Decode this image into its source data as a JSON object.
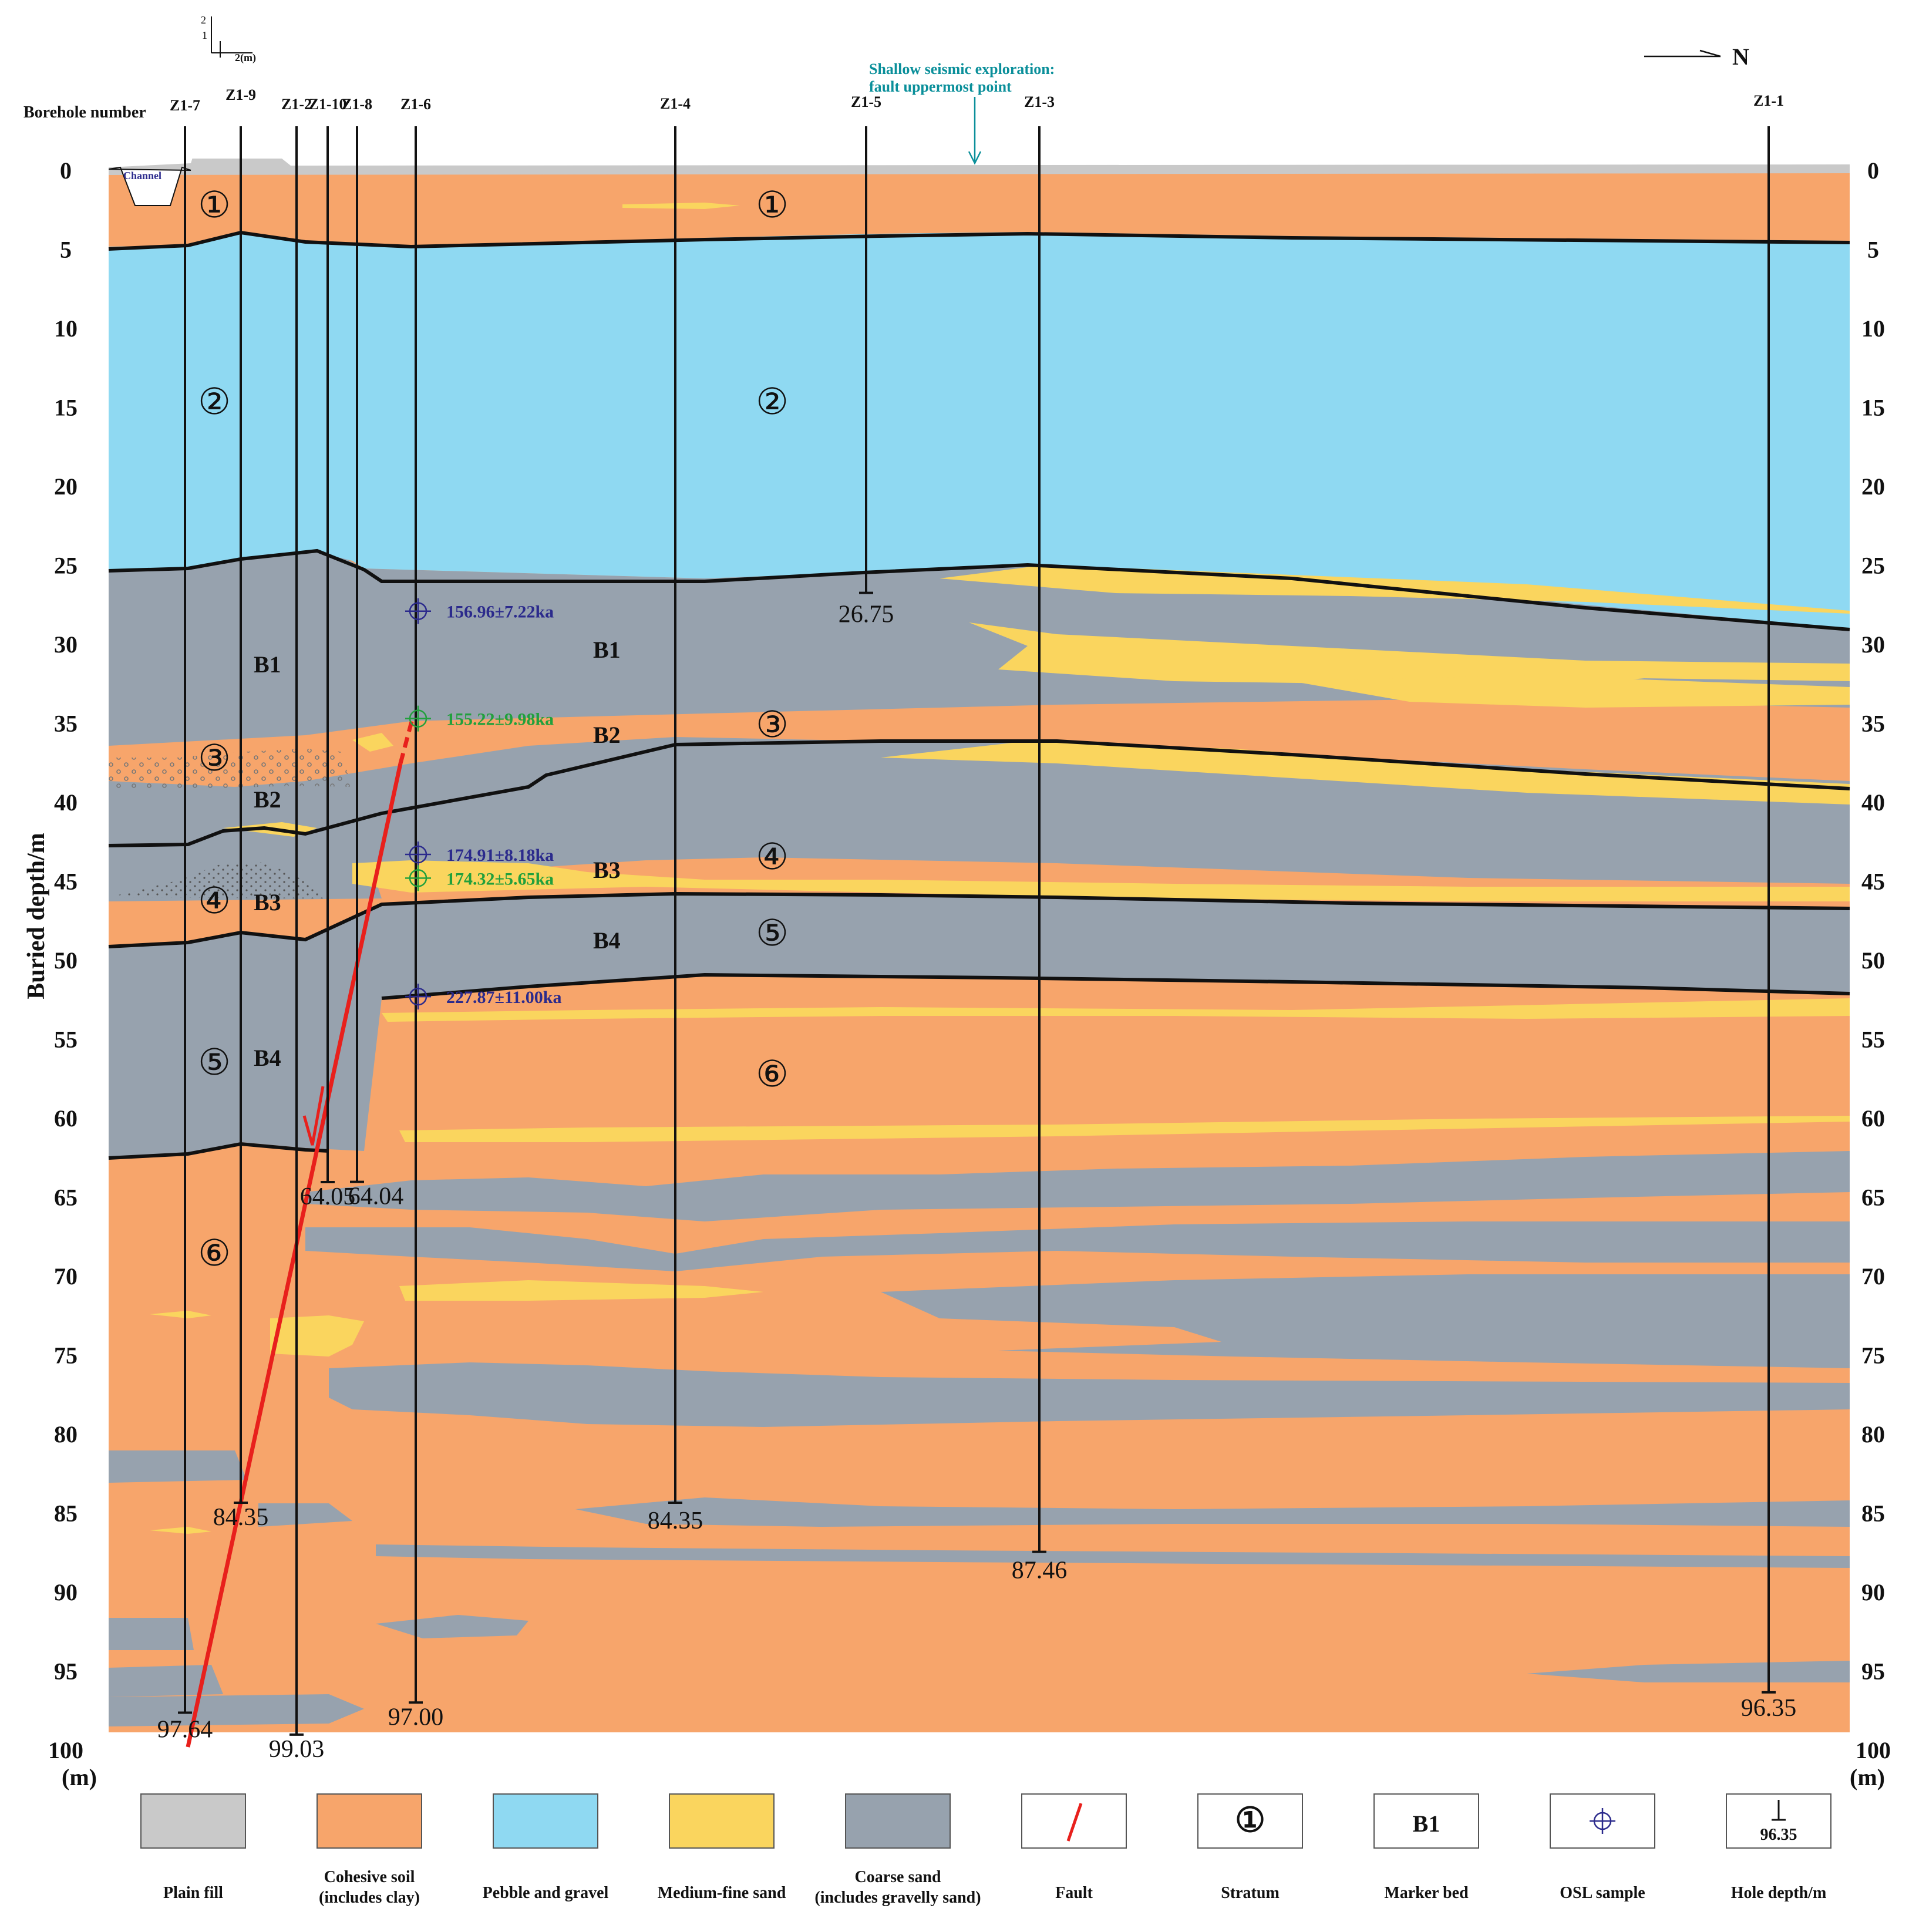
{
  "header": {
    "borehole_label": "Borehole number",
    "north_label": "N",
    "scale_labels": [
      "2",
      "1",
      "2(m)"
    ],
    "seismic_note_line1": "Shallow seismic exploration:",
    "seismic_note_line2": "fault uppermost point"
  },
  "axes": {
    "y_title": "Buried depth/m",
    "unit": "(m)",
    "ticks": [
      "0",
      "5",
      "10",
      "15",
      "20",
      "25",
      "30",
      "35",
      "40",
      "45",
      "50",
      "55",
      "60",
      "65",
      "70",
      "75",
      "80",
      "85",
      "90",
      "95",
      "100"
    ]
  },
  "boreholes": [
    {
      "name": "Z1-7",
      "depth_m": 97.64,
      "depth_label": "97.64"
    },
    {
      "name": "Z1-9",
      "depth_m": 84.35,
      "depth_label": "84.35"
    },
    {
      "name": "Z1-2",
      "depth_m": 99.03,
      "depth_label": "99.03"
    },
    {
      "name": "Z1-10",
      "depth_m": 64.05,
      "depth_label": "64.05"
    },
    {
      "name": "Z1-8",
      "depth_m": 64.04,
      "depth_label": "64.04"
    },
    {
      "name": "Z1-6",
      "depth_m": 97.0,
      "depth_label": "97.00"
    },
    {
      "name": "Z1-4",
      "depth_m": 84.35,
      "depth_label": "84.35"
    },
    {
      "name": "Z1-5",
      "depth_m": 26.75,
      "depth_label": "26.75"
    },
    {
      "name": "Z1-3",
      "depth_m": 87.46,
      "depth_label": "87.46"
    },
    {
      "name": "Z1-1",
      "depth_m": 96.35,
      "depth_label": "96.35"
    }
  ],
  "channel_label": "Channel",
  "strata_labels": [
    "①",
    "②",
    "③",
    "④",
    "⑤",
    "⑥"
  ],
  "marker_beds": [
    "B1",
    "B2",
    "B3",
    "B4"
  ],
  "osl_samples": [
    {
      "label": "156.96±7.22ka",
      "color": "#2b2a8c",
      "depth_m": 28.8
    },
    {
      "label": "155.22±9.98ka",
      "color": "#21a03c",
      "depth_m": 35.6
    },
    {
      "label": "174.91±8.18ka",
      "color": "#2b2a8c",
      "depth_m": 44.2
    },
    {
      "label": "174.32±5.65ka",
      "color": "#21a03c",
      "depth_m": 45.7
    },
    {
      "label": "227.87±11.00ka",
      "color": "#2b2a8c",
      "depth_m": 53.2
    }
  ],
  "colors": {
    "plain_fill": "#c9c9c9",
    "cohesive": "#f7a56b",
    "pebble": "#8fd9f2",
    "medium_sand": "#fad55e",
    "coarse": "#97a2ae",
    "fault": "#e8201c",
    "boundary": "#111111",
    "teal": "#0a8f9a"
  },
  "legend": [
    {
      "id": "plain_fill",
      "label": "Plain fill",
      "label2": "",
      "symbol": ""
    },
    {
      "id": "cohesive",
      "label": "Cohesive soil",
      "label2": "(includes  clay)",
      "symbol": ""
    },
    {
      "id": "pebble",
      "label": "Pebble and gravel",
      "label2": "",
      "symbol": ""
    },
    {
      "id": "medium_sand",
      "label": "Medium-fine sand",
      "label2": "",
      "symbol": ""
    },
    {
      "id": "coarse",
      "label": "Coarse sand",
      "label2": "(includes  gravelly sand)",
      "symbol": ""
    },
    {
      "id": "fault",
      "label": "Fault",
      "label2": "",
      "symbol": ""
    },
    {
      "id": "stratum",
      "label": "Stratum",
      "label2": "",
      "symbol": "①"
    },
    {
      "id": "marker",
      "label": "Marker bed",
      "label2": "",
      "symbol": "B1"
    },
    {
      "id": "osl",
      "label": "OSL  sample",
      "label2": "",
      "symbol": ""
    },
    {
      "id": "holedepth",
      "label": "Hole depth/m",
      "label2": "",
      "symbol": "96.35"
    }
  ]
}
